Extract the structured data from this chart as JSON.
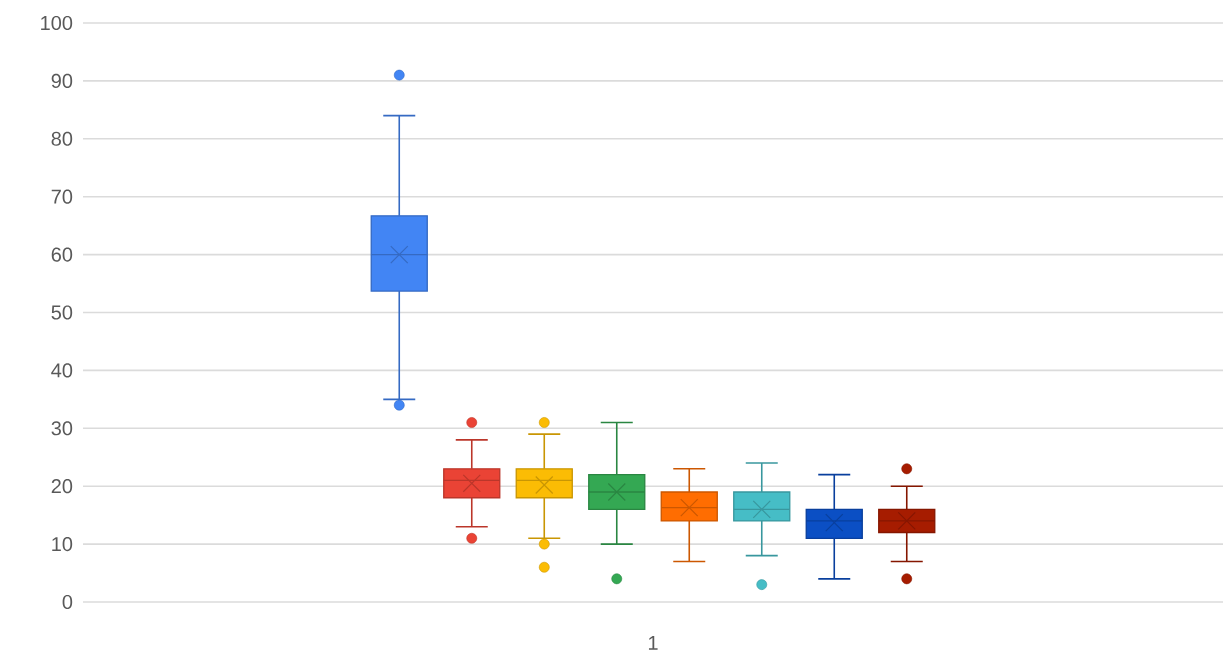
{
  "chart_data": {
    "type": "box",
    "categories": [
      "1"
    ],
    "ylim": [
      0,
      100
    ],
    "yticks": [
      0,
      10,
      20,
      30,
      40,
      50,
      60,
      70,
      80,
      90,
      100
    ],
    "grid": "y",
    "series": [
      {
        "color": "#4285f4",
        "boxes": [
          {
            "low": 35,
            "q1": 53.7,
            "median": 60,
            "q3": 66.7,
            "high": 84,
            "mean": 60,
            "outliers": [
              91,
              34
            ]
          }
        ]
      },
      {
        "color": "#ea4335",
        "boxes": [
          {
            "low": 13,
            "q1": 18,
            "median": 21,
            "q3": 23,
            "high": 28,
            "mean": 20.5,
            "outliers": [
              31,
              11
            ]
          }
        ]
      },
      {
        "color": "#fbbc04",
        "boxes": [
          {
            "low": 11,
            "q1": 18,
            "median": 21,
            "q3": 23,
            "high": 29,
            "mean": 20.2,
            "outliers": [
              31,
              10,
              6
            ]
          }
        ]
      },
      {
        "color": "#34a853",
        "boxes": [
          {
            "low": 10,
            "q1": 16,
            "median": 19,
            "q3": 22,
            "high": 31,
            "mean": 19,
            "outliers": [
              4
            ]
          }
        ]
      },
      {
        "color": "#ff6d01",
        "boxes": [
          {
            "low": 7,
            "q1": 14,
            "median": 16.3,
            "q3": 19,
            "high": 23,
            "mean": 16.3
          }
        ]
      },
      {
        "color": "#46bdc6",
        "boxes": [
          {
            "low": 8,
            "q1": 14,
            "median": 16,
            "q3": 19,
            "high": 24,
            "mean": 16,
            "outliers": [
              3
            ]
          }
        ]
      },
      {
        "color": "#0b4fc4",
        "boxes": [
          {
            "low": 4,
            "q1": 11,
            "median": 14,
            "q3": 16,
            "high": 22,
            "mean": 13.7
          }
        ]
      },
      {
        "color": "#a61c00",
        "boxes": [
          {
            "low": 7,
            "q1": 12,
            "median": 14,
            "q3": 16,
            "high": 20,
            "mean": 14,
            "outliers": [
              23,
              4
            ]
          }
        ]
      }
    ]
  }
}
